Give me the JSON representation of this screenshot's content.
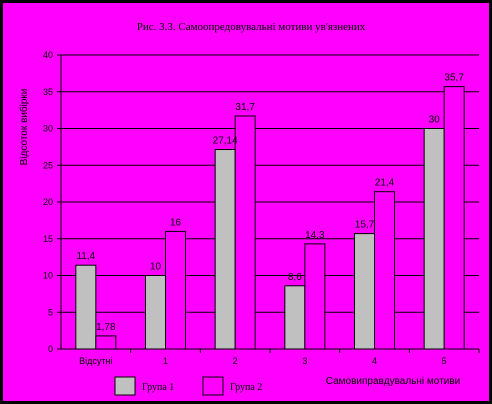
{
  "chart_data": {
    "type": "bar",
    "title": "Рис. 3.3. Самоопредовувальні мотиви ув'язнених",
    "ylabel": "Відсоток вибірки",
    "xlabel": "Самовиправдувальні мотиви",
    "ylim": [
      0,
      40
    ],
    "yticks": [
      "0",
      "5",
      "10",
      "15",
      "20",
      "25",
      "30",
      "35",
      "40"
    ],
    "grid": true,
    "legend_position": "bottom",
    "categories": [
      "Відсутні",
      "1",
      "2",
      "3",
      "4",
      "5"
    ],
    "series": [
      {
        "name": "Група 1",
        "color": "#c0c0c0",
        "values": [
          11.4,
          10,
          27.14,
          8.6,
          15.7,
          30
        ],
        "labels": [
          "11,4",
          "10",
          "27,14",
          "8,6",
          "15,7",
          "30"
        ]
      },
      {
        "name": "Група 2",
        "color": "#ff00ff",
        "values": [
          1.78,
          16,
          31.7,
          14.3,
          21.4,
          35.7
        ],
        "labels": [
          "1,78",
          "16",
          "31,7",
          "14,3",
          "21,4",
          "35,7"
        ]
      }
    ]
  },
  "colors": {
    "background": "#ff00ff",
    "border": "#000000",
    "grid": "#000000"
  }
}
